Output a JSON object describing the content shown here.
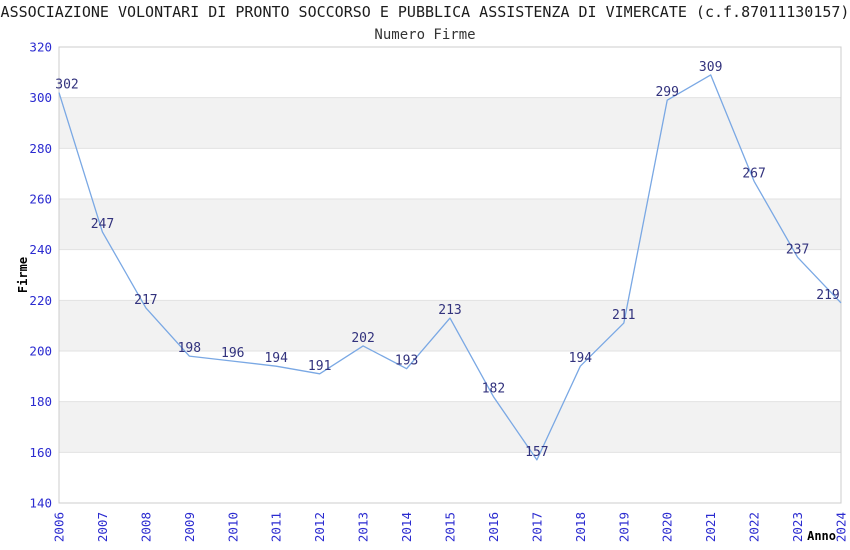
{
  "header": {
    "title": "ASSOCIAZIONE VOLONTARI DI PRONTO SOCCORSO E PUBBLICA ASSISTENZA DI VIMERCATE (c.f.87011130157)"
  },
  "chart_data": {
    "type": "line",
    "title": "Numero Firme",
    "xlabel": "Anno",
    "ylabel": "Firme",
    "x": [
      2006,
      2007,
      2008,
      2009,
      2010,
      2011,
      2012,
      2013,
      2014,
      2015,
      2016,
      2017,
      2018,
      2019,
      2020,
      2021,
      2022,
      2023,
      2024
    ],
    "values": [
      302,
      247,
      217,
      198,
      196,
      194,
      191,
      202,
      193,
      213,
      182,
      157,
      194,
      211,
      299,
      309,
      267,
      237,
      219
    ],
    "ylim": [
      140,
      320
    ],
    "ytick_step": 20,
    "legend": "none",
    "grid": "horizontal-bands",
    "colors": {
      "line": "#7aa8e4",
      "tick_label": "#2b2bd0",
      "data_label": "#32327d",
      "band_fill": "#f2f2f2",
      "gridline": "#e2e2e2",
      "plot_border": "#cccccc",
      "axis_title": "#000000",
      "title_text": "#1c1c1c"
    }
  }
}
